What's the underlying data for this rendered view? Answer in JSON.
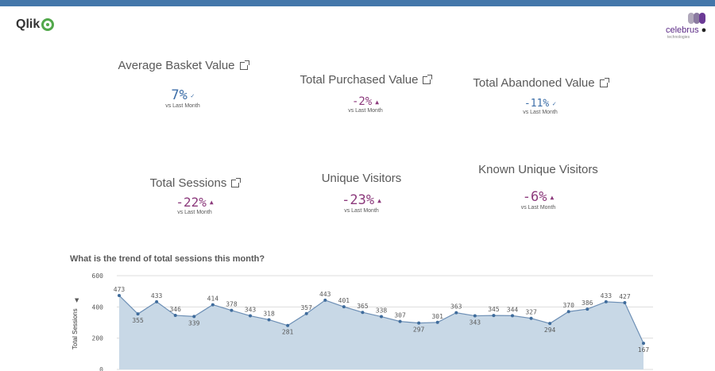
{
  "header": {
    "brand_left": "Qlik",
    "brand_right": "celebrus",
    "brand_right_sub": "technologies",
    "accent_color": "#4477aa"
  },
  "kpis": [
    {
      "title": "Average Basket Value",
      "value": "7%",
      "arrow": "✓",
      "sub": "vs Last Month",
      "color": "#3c6ea8",
      "link_icon": "external-link-icon"
    },
    {
      "title": "Total Purchased Value",
      "value": "-2%",
      "arrow": "▲",
      "sub": "vs Last Month",
      "color": "#8c3a7c",
      "link_icon": "external-link-icon"
    },
    {
      "title": "Total Abandoned Value",
      "value": "-11%",
      "arrow": "✓",
      "sub": "vs Last Month",
      "color": "#3c6ea8",
      "link_icon": "external-link-icon"
    },
    {
      "title": "Total Sessions",
      "value": "-22%",
      "arrow": "▲",
      "sub": "vs Last Month",
      "color": "#8c3a7c",
      "link_icon": "external-link-icon"
    },
    {
      "title": "Unique Visitors",
      "value": "-23%",
      "arrow": "▲",
      "sub": "vs Last Month",
      "color": "#8c3a7c"
    },
    {
      "title": "Known Unique Visitors",
      "value": "-6%",
      "arrow": "▲",
      "sub": "vs Last Month",
      "color": "#8c3a7c"
    }
  ],
  "chart": {
    "title": "What is the trend of total sessions this month?",
    "ylabel": "Total Sessions",
    "fill_color": "#c8d8e6",
    "line_color": "#6d8fb5",
    "point_color": "#3f6c9c"
  },
  "chart_data": {
    "type": "area",
    "ylabel": "Total Sessions",
    "ylim": [
      0,
      600
    ],
    "yticks": [
      0,
      200,
      400,
      600
    ],
    "grid": true,
    "values": [
      473,
      355,
      433,
      346,
      339,
      414,
      378,
      343,
      318,
      281,
      357,
      443,
      401,
      365,
      338,
      307,
      297,
      301,
      363,
      343,
      345,
      344,
      327,
      294,
      370,
      386,
      433,
      427,
      167
    ]
  }
}
